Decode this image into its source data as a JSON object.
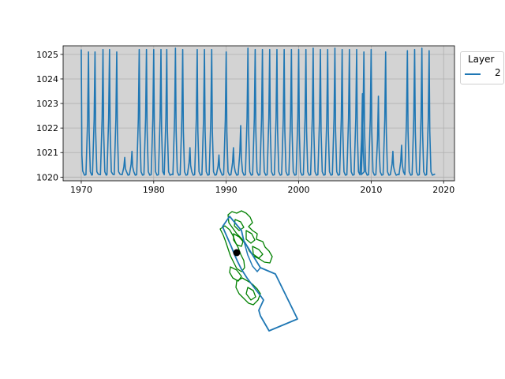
{
  "chart_data": [
    {
      "type": "line",
      "title": "",
      "xlabel": "",
      "ylabel": "",
      "xlim": [
        1967.5,
        2021.5
      ],
      "ylim": [
        1019.85,
        1025.35
      ],
      "x_ticks": [
        1970,
        1980,
        1990,
        2000,
        2010,
        2020
      ],
      "x_tick_labels": [
        "1970",
        "1980",
        "1990",
        "2000",
        "2010",
        "2020"
      ],
      "y_ticks": [
        1020,
        1021,
        1022,
        1023,
        1024,
        1025
      ],
      "y_tick_labels": [
        "1020",
        "1021",
        "1022",
        "1023",
        "1024",
        "1025"
      ],
      "grid": true,
      "background": "#d3d3d3",
      "baseline": 1020.1,
      "legend": {
        "title": "Layer",
        "placement": "outside-right"
      },
      "series": [
        {
          "name": "2",
          "color": "#1f77b4",
          "peaks": [
            [
              1970.0,
              1025.2
            ],
            [
              1971.0,
              1025.1
            ],
            [
              1971.9,
              1025.1
            ],
            [
              1973.0,
              1025.2
            ],
            [
              1973.9,
              1025.2
            ],
            [
              1974.9,
              1025.1
            ],
            [
              1976.0,
              1020.8
            ],
            [
              1977.0,
              1021.05
            ],
            [
              1978.0,
              1025.2
            ],
            [
              1979.0,
              1025.2
            ],
            [
              1980.0,
              1025.2
            ],
            [
              1981.0,
              1025.2
            ],
            [
              1981.8,
              1025.2
            ],
            [
              1983.0,
              1025.25
            ],
            [
              1984.0,
              1025.2
            ],
            [
              1985.0,
              1021.2
            ],
            [
              1986.0,
              1025.2
            ],
            [
              1987.0,
              1025.2
            ],
            [
              1988.0,
              1025.2
            ],
            [
              1989.0,
              1020.9
            ],
            [
              1990.0,
              1025.1
            ],
            [
              1991.0,
              1021.2
            ],
            [
              1992.0,
              1022.1
            ],
            [
              1993.0,
              1025.25
            ],
            [
              1994.0,
              1025.2
            ],
            [
              1995.0,
              1025.2
            ],
            [
              1996.0,
              1025.2
            ],
            [
              1997.0,
              1025.2
            ],
            [
              1998.0,
              1025.2
            ],
            [
              1999.0,
              1025.2
            ],
            [
              2000.0,
              1025.2
            ],
            [
              2001.0,
              1025.2
            ],
            [
              2002.0,
              1025.25
            ],
            [
              2003.0,
              1025.2
            ],
            [
              2004.0,
              1025.2
            ],
            [
              2005.0,
              1025.25
            ],
            [
              2006.0,
              1025.2
            ],
            [
              2007.0,
              1025.2
            ],
            [
              2008.0,
              1025.2
            ],
            [
              2008.8,
              1023.4
            ],
            [
              2009.0,
              1025.1
            ],
            [
              2010.0,
              1025.2
            ],
            [
              2011.0,
              1023.3
            ],
            [
              2012.0,
              1025.1
            ],
            [
              2013.0,
              1021.05
            ],
            [
              2014.2,
              1021.3
            ],
            [
              2015.0,
              1025.15
            ],
            [
              2016.0,
              1025.2
            ],
            [
              2017.0,
              1025.25
            ],
            [
              2018.0,
              1025.15
            ]
          ],
          "end_x": 2018.8
        }
      ]
    },
    {
      "type": "map",
      "title": "",
      "layers": [
        {
          "name": "",
          "color": "#1f77b4"
        },
        {
          "name": "",
          "color": "#008000"
        },
        {
          "name": "",
          "color": "#000000"
        }
      ]
    }
  ]
}
